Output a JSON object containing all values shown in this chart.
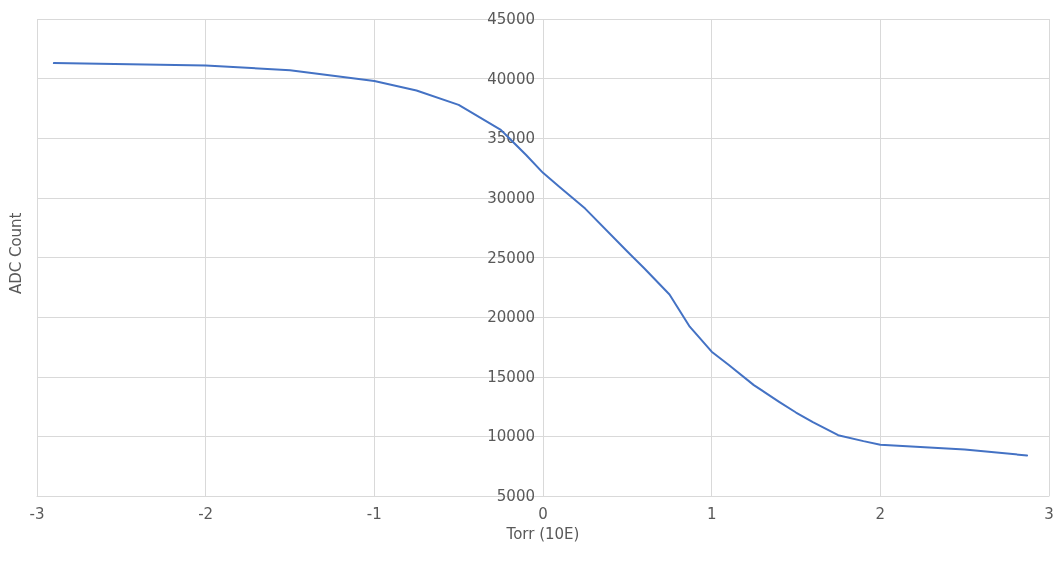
{
  "chart_data": {
    "type": "line",
    "xlabel": "Torr (10E)",
    "ylabel": "ADC Count",
    "x": [
      -2.9,
      -2,
      -1.5,
      -1,
      -0.75,
      -0.5,
      -0.25,
      -0.1,
      0,
      0.1,
      0.25,
      0.5,
      0.6,
      0.75,
      0.87,
      1,
      1.1,
      1.25,
      1.4,
      1.5,
      1.6,
      1.75,
      1.9,
      2,
      2.5,
      2.87
    ],
    "series": [
      {
        "color": "#4472c4",
        "values": [
          41300,
          41100,
          40700,
          39800,
          39000,
          37800,
          35700,
          33600,
          32100,
          30900,
          29100,
          25500,
          24100,
          21900,
          19200,
          17100,
          16000,
          14300,
          12900,
          12000,
          11200,
          10100,
          9600,
          9300,
          8900,
          8400
        ]
      }
    ],
    "xlim": [
      -3,
      3
    ],
    "xticks": [
      -3,
      -2,
      -1,
      0,
      1,
      2,
      3
    ],
    "ylim": [
      5000,
      45000
    ],
    "yticks": [
      5000,
      10000,
      15000,
      20000,
      25000,
      30000,
      35000,
      40000,
      45000
    ],
    "grid": true,
    "marker": "none",
    "line_style": "solid"
  }
}
